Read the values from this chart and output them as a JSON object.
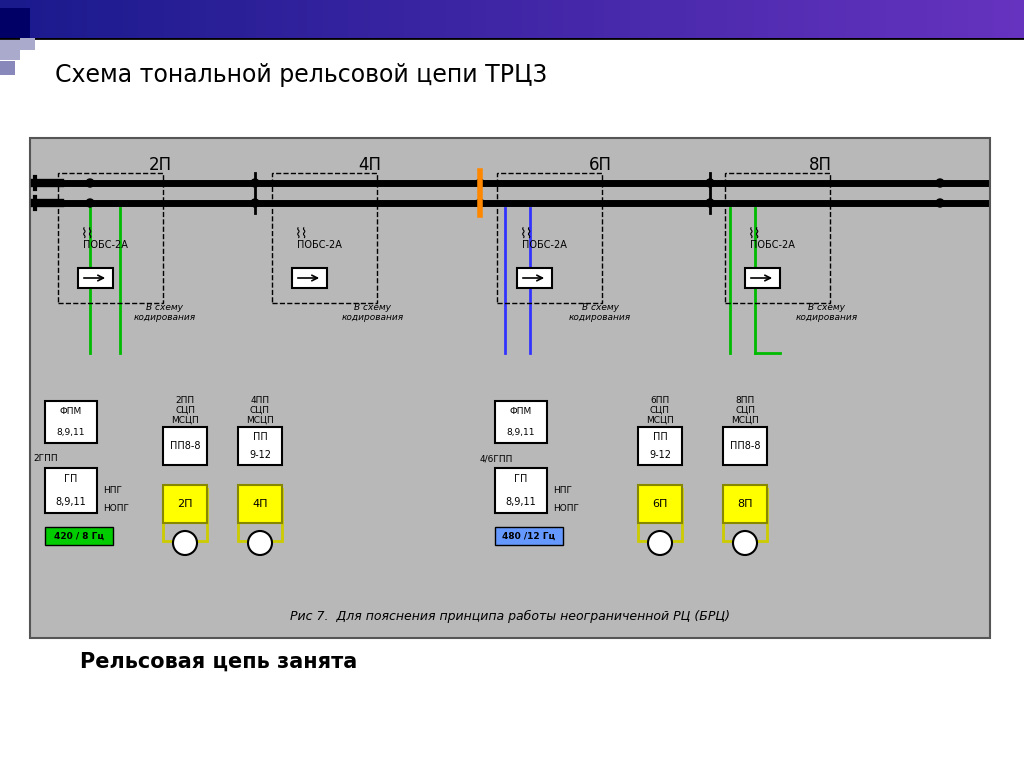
{
  "title": "Схема тональной рельсовой цепи ТРЦ3",
  "subtitle": "Рельсовая цепь занята",
  "caption": "Рис 7.  Для пояснения принципа работы неограниченной РЦ (БРЦ)",
  "bg_color": "#f0f0f0",
  "diagram_bg": "#c8c8c8",
  "rail_labels": [
    "2П",
    "4П",
    "6П",
    "8П"
  ],
  "freq_label_left": "420 / 8 Гц",
  "freq_label_right": "480 /12 Гц",
  "freq_bg_left": "#00cc00",
  "freq_bg_right": "#6699ff",
  "header_bar_color": "#1a1a8c",
  "header_gradient_end": "#6666bb"
}
